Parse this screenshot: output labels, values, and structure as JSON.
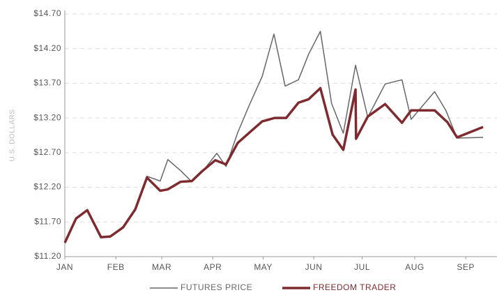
{
  "chart_data": {
    "type": "line",
    "ylabel": "U.S. DOLLARS",
    "xlim": [
      0,
      8.2
    ],
    "xticks": [
      {
        "value": 0,
        "label": "JAN"
      },
      {
        "value": 1,
        "label": "FEB"
      },
      {
        "value": 1.9,
        "label": "MAR"
      },
      {
        "value": 2.9,
        "label": "APR"
      },
      {
        "value": 3.89,
        "label": "MAY"
      },
      {
        "value": 4.88,
        "label": "JUN"
      },
      {
        "value": 5.83,
        "label": "JUL"
      },
      {
        "value": 6.86,
        "label": "AUG"
      },
      {
        "value": 7.86,
        "label": "SEP"
      }
    ],
    "ylim": [
      11.2,
      14.7
    ],
    "yticks": [
      {
        "value": 11.2,
        "label": "$11.20"
      },
      {
        "value": 11.7,
        "label": "$11.70"
      },
      {
        "value": 12.2,
        "label": "$12.20"
      },
      {
        "value": 12.7,
        "label": "$12.70"
      },
      {
        "value": 13.2,
        "label": "$13.20"
      },
      {
        "value": 13.7,
        "label": "$13.70"
      },
      {
        "value": 14.2,
        "label": "$14.20"
      },
      {
        "value": 14.7,
        "label": "$14.70"
      }
    ],
    "grid": true,
    "series": [
      {
        "name": "FUTURES PRICE",
        "color": "#666666",
        "x": [
          0,
          0.22,
          0.44,
          0.71,
          0.89,
          1.14,
          1.38,
          1.61,
          1.87,
          2.02,
          2.27,
          2.49,
          2.69,
          2.98,
          3.16,
          3.39,
          3.62,
          3.87,
          4.1,
          4.32,
          4.58,
          4.78,
          5.01,
          5.23,
          5.46,
          5.7,
          5.94,
          6.28,
          6.61,
          6.79,
          7.25,
          7.47,
          7.69,
          8.2
        ],
        "values": [
          11.4,
          11.75,
          11.87,
          11.48,
          11.49,
          11.62,
          11.88,
          12.36,
          12.29,
          12.6,
          12.44,
          12.28,
          12.42,
          12.69,
          12.5,
          12.99,
          13.39,
          13.8,
          14.41,
          13.66,
          13.75,
          14.12,
          14.45,
          13.41,
          12.98,
          13.96,
          13.21,
          13.69,
          13.75,
          13.18,
          13.58,
          13.31,
          12.91,
          12.92
        ]
      },
      {
        "name": "FREEDOM TRADER",
        "color": "#7f2a2e",
        "x": [
          0,
          0.22,
          0.44,
          0.71,
          0.89,
          1.14,
          1.38,
          1.61,
          1.87,
          2.02,
          2.27,
          2.49,
          2.69,
          2.95,
          3.16,
          3.39,
          3.62,
          3.87,
          4.11,
          4.34,
          4.58,
          4.78,
          5.01,
          5.25,
          5.46,
          5.7,
          5.71,
          5.94,
          6.28,
          6.61,
          6.79,
          7.25,
          7.5,
          7.69,
          8.2
        ],
        "values": [
          11.4,
          11.75,
          11.87,
          11.48,
          11.49,
          11.62,
          11.88,
          12.34,
          12.15,
          12.17,
          12.28,
          12.29,
          12.43,
          12.59,
          12.53,
          12.84,
          12.99,
          13.15,
          13.2,
          13.2,
          13.42,
          13.47,
          13.63,
          12.96,
          12.74,
          13.61,
          12.9,
          13.22,
          13.4,
          13.13,
          13.31,
          13.31,
          13.14,
          12.92,
          13.07
        ]
      }
    ]
  }
}
